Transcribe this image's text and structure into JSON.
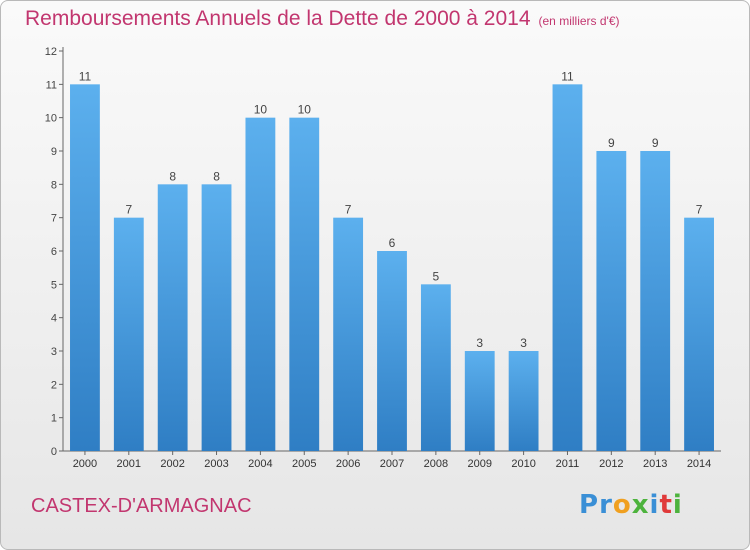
{
  "chart_data": {
    "type": "bar",
    "title": "Remboursements Annuels de la Dette de 2000 à 2014",
    "unit_note": "(en milliers d'€)",
    "categories": [
      "2000",
      "2001",
      "2002",
      "2003",
      "2004",
      "2005",
      "2006",
      "2007",
      "2008",
      "2009",
      "2010",
      "2011",
      "2012",
      "2013",
      "2014"
    ],
    "values": [
      11,
      7,
      8,
      8,
      10,
      10,
      7,
      6,
      5,
      3,
      3,
      11,
      9,
      9,
      7
    ],
    "yticks": [
      0,
      1,
      2,
      3,
      4,
      5,
      6,
      7,
      8,
      9,
      10,
      11,
      12
    ],
    "ylim": [
      0,
      12
    ],
    "grid": false,
    "bar_color": "#4d9de0"
  },
  "footer": {
    "commune": "CASTEX-D'ARMAGNAC",
    "logo_letters": [
      {
        "ch": "P",
        "color": "#3a8fd6"
      },
      {
        "ch": "r",
        "color": "#3a8fd6"
      },
      {
        "ch": "o",
        "color": "#f0a020"
      },
      {
        "ch": "x",
        "color": "#4db33d"
      },
      {
        "ch": "i",
        "color": "#3a8fd6"
      },
      {
        "ch": "t",
        "color": "#e03a3a"
      },
      {
        "ch": "i",
        "color": "#4db33d"
      }
    ]
  }
}
